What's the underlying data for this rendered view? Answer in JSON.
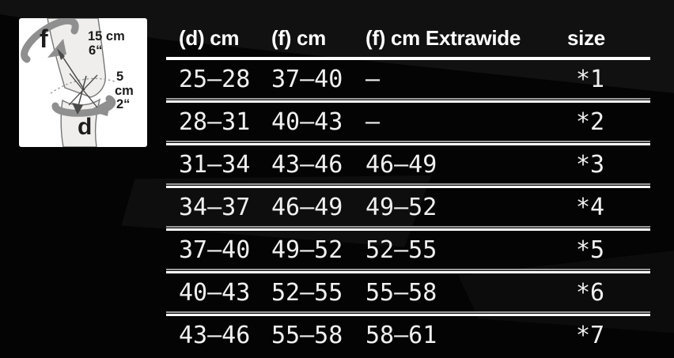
{
  "diagram": {
    "f_label": "f",
    "d_label": "d",
    "f_measurement": [
      "15 cm",
      "6“"
    ],
    "d_measurement": [
      "5",
      "cm",
      "2“"
    ]
  },
  "table": {
    "headers": {
      "d": "(d) cm",
      "f": "(f) cm",
      "extrawide": "(f) cm Extrawide",
      "size": "size"
    },
    "rows": [
      {
        "d": "25–28",
        "f": "37–40",
        "extrawide": "–",
        "size": "*1"
      },
      {
        "d": "28–31",
        "f": "40–43",
        "extrawide": "–",
        "size": "*2"
      },
      {
        "d": "31–34",
        "f": "43–46",
        "extrawide": "46–49",
        "size": "*3"
      },
      {
        "d": "34–37",
        "f": "46–49",
        "extrawide": "49–52",
        "size": "*4"
      },
      {
        "d": "37–40",
        "f": "49–52",
        "extrawide": "52–55",
        "size": "*5"
      },
      {
        "d": "40–43",
        "f": "52–55",
        "extrawide": "55–58",
        "size": "*6"
      },
      {
        "d": "43–46",
        "f": "55–58",
        "extrawide": "58–61",
        "size": "*7"
      }
    ]
  },
  "chart_data": {
    "type": "table",
    "columns": [
      "(d) cm",
      "(f) cm",
      "(f) cm Extrawide",
      "size"
    ],
    "rows": [
      [
        "25–28",
        "37–40",
        "–",
        "*1"
      ],
      [
        "28–31",
        "40–43",
        "–",
        "*2"
      ],
      [
        "31–34",
        "43–46",
        "46–49",
        "*3"
      ],
      [
        "34–37",
        "46–49",
        "49–52",
        "*4"
      ],
      [
        "37–40",
        "49–52",
        "52–55",
        "*5"
      ],
      [
        "40–43",
        "52–55",
        "55–58",
        "*6"
      ],
      [
        "43–46",
        "55–58",
        "58–61",
        "*7"
      ]
    ],
    "annotations": [
      "f = 15 cm / 6“ above knee center",
      "d = 5 cm / 2“ below knee center"
    ]
  },
  "colors": {
    "background": "#040404",
    "text": "#f0f0f0",
    "header_text": "#ffffff",
    "separator": "#ffffff",
    "separator_echo": "#9a9a9a",
    "diagram_box": "#ffffff",
    "diagram_band": "#8f8f8f"
  }
}
